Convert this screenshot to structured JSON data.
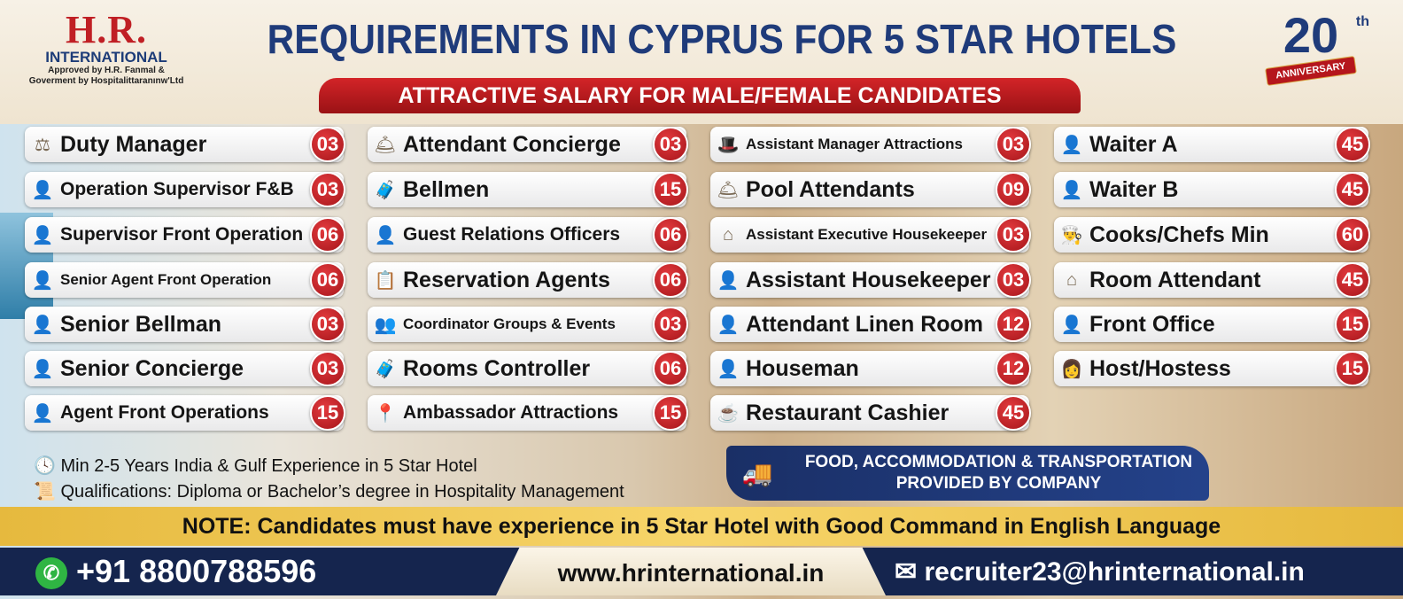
{
  "logo": {
    "brand": "H.R.",
    "sub": "INTERNATIONAL",
    "approved1": "Approved by H.R. Fanmal &",
    "approved2": "Goverment by Hospitalittaranınw'Ltd"
  },
  "title": "REQUIREMENTS IN CYPRUS FOR 5 STAR HOTELS",
  "ribbon": "ATTRACTIVE SALARY FOR MALE/FEMALE CANDIDATES",
  "anniversary": {
    "number": "20",
    "suffix": "th",
    "label": "ANNIVERSARY"
  },
  "columns": [
    [
      {
        "icon": "gavel-icon",
        "g": "⚖",
        "label": "Duty Manager",
        "count": "03"
      },
      {
        "icon": "manager-icon",
        "g": "👤",
        "label": "Operation Supervisor F&B",
        "count": "03"
      },
      {
        "icon": "supervisor-icon",
        "g": "👤",
        "label": "Supervisor Front Operation",
        "count": "06"
      },
      {
        "icon": "agent-icon",
        "g": "👤",
        "label": "Senior Agent Front Operation",
        "count": "06"
      },
      {
        "icon": "bellman-icon",
        "g": "👤",
        "label": "Senior Bellman",
        "count": "03"
      },
      {
        "icon": "concierge-icon",
        "g": "👤",
        "label": "Senior Concierge",
        "count": "03"
      },
      {
        "icon": "agent-icon",
        "g": "👤",
        "label": "Agent Front Operations",
        "count": "15"
      }
    ],
    [
      {
        "icon": "bell-icon",
        "g": "🛎",
        "label": "Attendant Concierge",
        "count": "03"
      },
      {
        "icon": "luggage-icon",
        "g": "🧳",
        "label": "Bellmen",
        "count": "15"
      },
      {
        "icon": "person-icon",
        "g": "👤",
        "label": "Guest Relations Officers",
        "count": "06"
      },
      {
        "icon": "clipboard-icon",
        "g": "📋",
        "label": "Reservation Agents",
        "count": "06"
      },
      {
        "icon": "group-icon",
        "g": "👥",
        "label": "Coordinator Groups & Events",
        "count": "03"
      },
      {
        "icon": "luggage-icon",
        "g": "🧳",
        "label": "Rooms Controller",
        "count": "06"
      },
      {
        "icon": "location-pin-icon",
        "g": "📍",
        "label": "Ambassador Attractions",
        "count": "15"
      }
    ],
    [
      {
        "icon": "chef-hat-icon",
        "g": "🎩",
        "label": "Assistant Manager Attractions",
        "count": "03"
      },
      {
        "icon": "cloche-icon",
        "g": "🛎",
        "label": "Pool Attendants",
        "count": "09"
      },
      {
        "icon": "hanger-icon",
        "g": "⌂",
        "label": "Assistant Executive Housekeeper",
        "count": "03"
      },
      {
        "icon": "housekeeper-icon",
        "g": "👤",
        "label": "Assistant Housekeeper",
        "count": "03"
      },
      {
        "icon": "person-icon",
        "g": "👤",
        "label": "Attendant Linen Room",
        "count": "12"
      },
      {
        "icon": "houseman-icon",
        "g": "👤",
        "label": "Houseman",
        "count": "12"
      },
      {
        "icon": "coffee-icon",
        "g": "☕",
        "label": "Restaurant Cashier",
        "count": "45"
      }
    ],
    [
      {
        "icon": "waiter-icon",
        "g": "👤",
        "label": "Waiter A",
        "count": "45"
      },
      {
        "icon": "waiter-icon",
        "g": "👤",
        "label": "Waiter B",
        "count": "45"
      },
      {
        "icon": "chef-hat-icon",
        "g": "👨‍🍳",
        "label": "Cooks/Chefs Min",
        "count": "60"
      },
      {
        "icon": "hanger-icon",
        "g": "⌂",
        "label": "Room Attendant",
        "count": "45"
      },
      {
        "icon": "front-desk-icon",
        "g": "👤",
        "label": "Front Office",
        "count": "15"
      },
      {
        "icon": "hostess-icon",
        "g": "👩",
        "label": "Host/Hostess",
        "count": "15"
      }
    ]
  ],
  "info": {
    "experience": "Min 2-5 Years India & Gulf Experience in 5 Star Hotel",
    "qualifications": "Qualifications: Diploma or Bachelor’s degree in Hospitality Management"
  },
  "benefit": {
    "line1": "FOOD, ACCOMMODATION & TRANSPORTATION",
    "line2": "PROVIDED BY COMPANY"
  },
  "note": "NOTE: Candidates must have experience in 5 Star Hotel with Good Command in English Language",
  "footer": {
    "phone": "+91 8800788596",
    "website": "www.hrinternational.in",
    "email": "recruiter23@hrinternational.in"
  }
}
